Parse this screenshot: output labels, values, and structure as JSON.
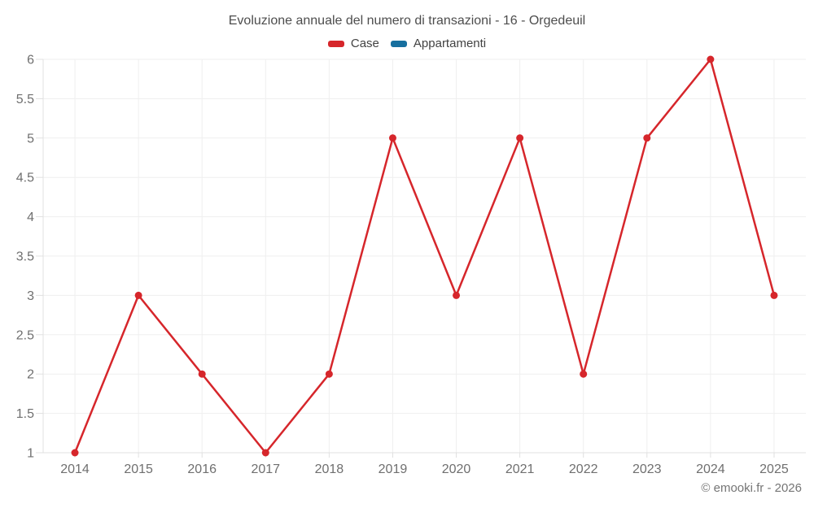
{
  "header": {
    "title": "Evoluzione annuale del numero di transazioni - 16 - Orgedeuil"
  },
  "legend": {
    "items": [
      {
        "label": "Case",
        "color": "#d6262b"
      },
      {
        "label": "Appartamenti",
        "color": "#176f9f"
      }
    ]
  },
  "footer": {
    "credit": "© emooki.fr - 2026"
  },
  "chart_data": {
    "type": "line",
    "title": "Evoluzione annuale del numero di transazioni - 16 - Orgedeuil",
    "xlabel": "",
    "ylabel": "",
    "x": [
      2014,
      2015,
      2016,
      2017,
      2018,
      2019,
      2020,
      2021,
      2022,
      2023,
      2024,
      2025
    ],
    "series": [
      {
        "name": "Case",
        "color": "#d6262b",
        "values": [
          1,
          3,
          2,
          1,
          2,
          5,
          3,
          5,
          2,
          5,
          6,
          3
        ]
      },
      {
        "name": "Appartamenti",
        "color": "#176f9f",
        "values": []
      }
    ],
    "ylim": [
      1,
      6
    ],
    "ytick_step": 0.5,
    "grid": true,
    "legend_position": "top",
    "marker": "circle"
  }
}
